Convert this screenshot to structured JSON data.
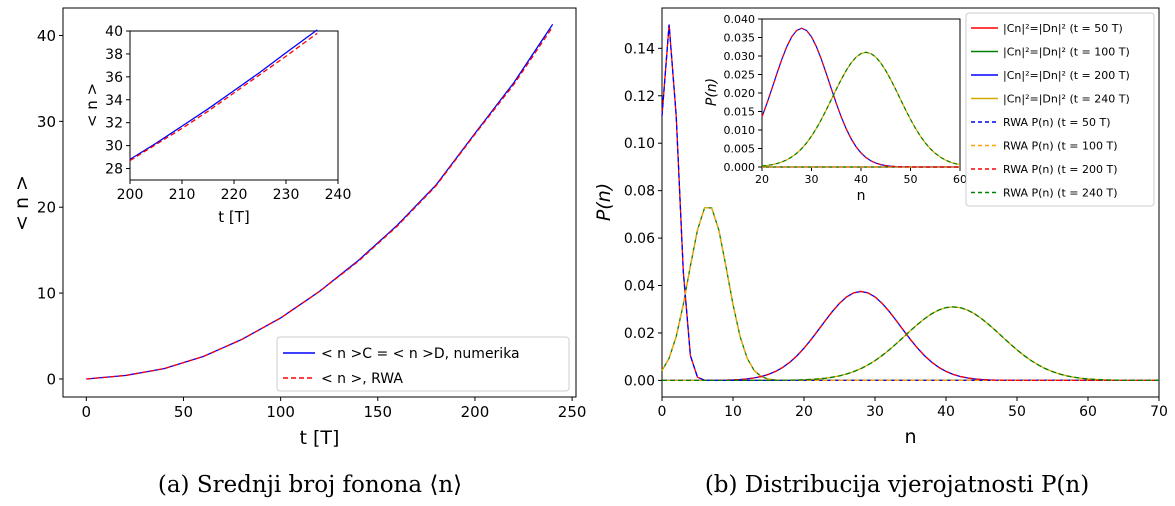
{
  "chart_data": [
    {
      "type": "line",
      "xlabel": "t [T]",
      "ylabel": "< n >",
      "xlim": [
        -12,
        252
      ],
      "ylim": [
        -2.1,
        43.2
      ],
      "xticks": [
        0,
        50,
        100,
        150,
        200,
        250
      ],
      "yticks": [
        0,
        10,
        20,
        30,
        40
      ],
      "grid": false,
      "legend_position": "bottom-right",
      "caption": "(a) Srednji broj fonona ⟨n⟩",
      "series": [
        {
          "name": "< n >C = < n >D, numerika",
          "color": "#0000ff",
          "style": "solid",
          "x": [
            0,
            20,
            40,
            60,
            80,
            100,
            120,
            140,
            160,
            180,
            200,
            220,
            240
          ],
          "y": [
            0,
            0.4,
            1.2,
            2.6,
            4.6,
            7.1,
            10.2,
            13.8,
            17.9,
            22.6,
            28.6,
            34.5,
            41.3
          ]
        },
        {
          "name": "< n >, RWA",
          "color": "#ff0000",
          "style": "dashed",
          "x": [
            0,
            20,
            40,
            60,
            80,
            100,
            120,
            140,
            160,
            180,
            200,
            220,
            240
          ],
          "y": [
            0,
            0.4,
            1.2,
            2.6,
            4.6,
            7.1,
            10.2,
            13.7,
            17.8,
            22.5,
            28.5,
            34.3,
            41.0
          ]
        }
      ],
      "inset": {
        "xlim": [
          200,
          240
        ],
        "ylim": [
          27,
          40
        ],
        "xlabel": "t [T]",
        "ylabel": "< n >",
        "xticks": [
          200,
          210,
          220,
          230,
          240
        ],
        "yticks": [
          28,
          30,
          32,
          34,
          36,
          38,
          40
        ],
        "series": [
          {
            "color": "#0000ff",
            "style": "solid",
            "x": [
              200,
              205,
              210,
              215,
              220,
              225,
              230,
              236
            ],
            "y": [
              28.8,
              30.2,
              31.7,
              33.2,
              34.8,
              36.4,
              38.1,
              40.1
            ]
          },
          {
            "color": "#ff0000",
            "style": "dashed",
            "x": [
              200,
              205,
              210,
              215,
              220,
              225,
              230,
              236
            ],
            "y": [
              28.7,
              30.1,
              31.5,
              33.0,
              34.6,
              36.2,
              37.8,
              39.8
            ]
          }
        ]
      }
    },
    {
      "type": "line",
      "xlabel": "n",
      "ylabel": "P(n)",
      "xlim": [
        0,
        70
      ],
      "ylim": [
        -0.007,
        0.157
      ],
      "xticks": [
        0,
        10,
        20,
        30,
        40,
        50,
        60,
        70
      ],
      "yticks": [
        "0.00",
        "0.02",
        "0.04",
        "0.06",
        "0.08",
        "0.10",
        "0.12",
        "0.14"
      ],
      "grid": false,
      "legend_position": "right",
      "caption": "(b) Distribucija vjerojatnosti P(n)",
      "distributions": [
        {
          "mean": 1.0,
          "peak": 0.15
        },
        {
          "mean": 6.5,
          "peak": 0.074
        },
        {
          "mean": 28.0,
          "peak": 0.0375
        },
        {
          "mean": 41.0,
          "peak": 0.031
        }
      ],
      "series": [
        {
          "name": "|Cn|²=|Dn|² (t = 50 T)",
          "color": "#ff0000",
          "style": "solid",
          "dist": 0
        },
        {
          "name": "|Cn|²=|Dn|² (t = 100 T)",
          "color": "#008000",
          "style": "solid",
          "dist": 1
        },
        {
          "name": "|Cn|²=|Dn|² (t = 200 T)",
          "color": "#0000ff",
          "style": "solid",
          "dist": 2
        },
        {
          "name": "|Cn|²=|Dn|² (t = 240 T)",
          "color": "#d4aa00",
          "style": "solid",
          "dist": 3
        },
        {
          "name": "RWA P(n) (t = 50 T)",
          "color": "#0000ff",
          "style": "dashed",
          "dist": 0
        },
        {
          "name": "RWA P(n) (t = 100 T)",
          "color": "#ffa500",
          "style": "dashed",
          "dist": 1
        },
        {
          "name": "RWA P(n) (t = 200 T)",
          "color": "#ff0000",
          "style": "dashed",
          "dist": 2
        },
        {
          "name": "RWA P(n) (t = 240 T)",
          "color": "#008000",
          "style": "dashed",
          "dist": 3
        }
      ],
      "inset": {
        "xlim": [
          20,
          60
        ],
        "ylim": [
          0,
          0.04
        ],
        "xlabel": "n",
        "ylabel": "P(n)",
        "xticks": [
          20,
          30,
          40,
          50,
          60
        ],
        "yticks": [
          "0.000",
          "0.005",
          "0.010",
          "0.015",
          "0.020",
          "0.025",
          "0.030",
          "0.035",
          "0.040"
        ]
      }
    }
  ]
}
